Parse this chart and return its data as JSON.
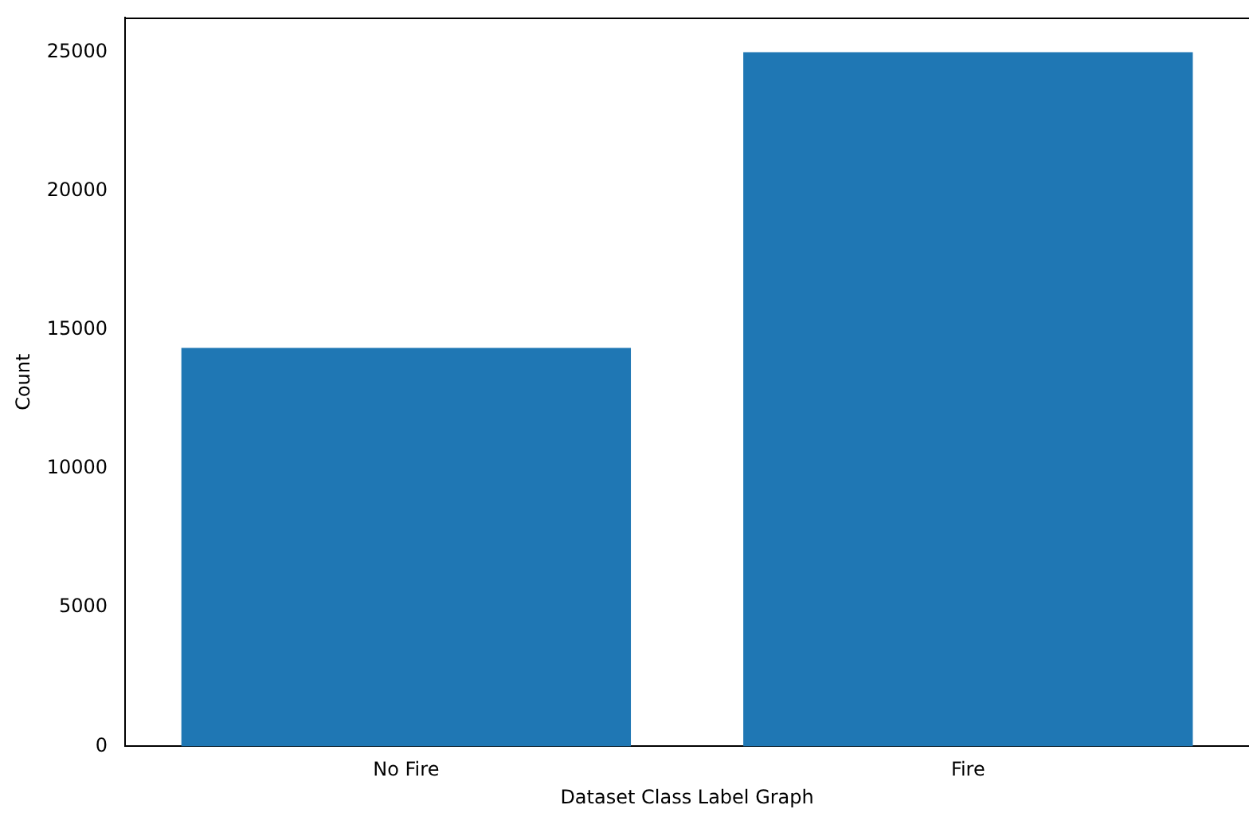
{
  "chart_data": {
    "type": "bar",
    "xlabel": "Dataset Class Label Graph",
    "ylabel": "Count",
    "categories": [
      "No Fire",
      "Fire"
    ],
    "values": [
      14350,
      25000
    ],
    "color": "#1f77b4",
    "ylim": [
      0,
      26250
    ],
    "yticks": [
      0,
      5000,
      10000,
      15000,
      20000,
      25000
    ],
    "grid": false,
    "legend": false
  }
}
